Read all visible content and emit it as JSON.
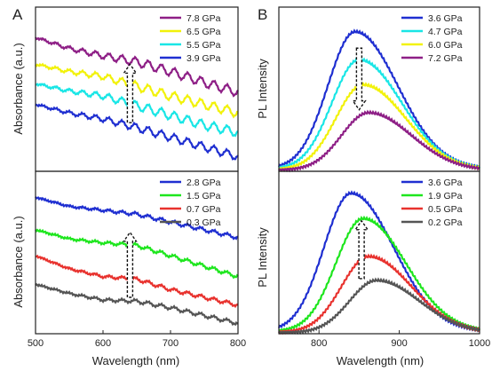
{
  "colors": {
    "purple": "#8e1f86",
    "yellow": "#f2f20a",
    "cyan": "#19e6e6",
    "blue": "#1f2fd1",
    "green": "#1ee61e",
    "red": "#e8322e",
    "gray": "#555555",
    "axis": "#222222"
  },
  "panels": {
    "A": {
      "label": "A"
    },
    "B": {
      "label": "B"
    }
  },
  "chart_data": [
    {
      "id": "A-top",
      "type": "line",
      "ylabel": "Absorbance (a.u.)",
      "xlabel": "",
      "xlim": [
        500,
        800
      ],
      "x": [
        500,
        550,
        600,
        650,
        700,
        750,
        800
      ],
      "legend_position": "top-right",
      "series": [
        {
          "name": "7.8 GPa",
          "color": "purple",
          "values": [
            1.0,
            0.91,
            0.85,
            0.8,
            0.72,
            0.63,
            0.55
          ],
          "ripple": 0.035
        },
        {
          "name": "6.5 GPa",
          "color": "yellow",
          "values": [
            0.78,
            0.72,
            0.68,
            0.6,
            0.52,
            0.45,
            0.38
          ],
          "ripple": 0.035
        },
        {
          "name": "5.5 GPa",
          "color": "cyan",
          "values": [
            0.62,
            0.56,
            0.52,
            0.44,
            0.36,
            0.28,
            0.22
          ],
          "ripple": 0.035
        },
        {
          "name": "3.9 GPa",
          "color": "blue",
          "values": [
            0.45,
            0.38,
            0.33,
            0.26,
            0.18,
            0.1,
            0.02
          ],
          "ripple": 0.03
        }
      ],
      "arrow": {
        "x": 640,
        "from": 0.3,
        "to": 0.78,
        "dir": "up"
      }
    },
    {
      "id": "A-bottom",
      "type": "line",
      "ylabel": "Absorbance (a.u.)",
      "xlabel": "Wavelength (nm)",
      "xlim": [
        500,
        800
      ],
      "xticks": [
        500,
        600,
        700,
        800
      ],
      "x": [
        500,
        550,
        600,
        650,
        700,
        750,
        800
      ],
      "legend_position": "top-right",
      "series": [
        {
          "name": "2.8 GPa",
          "color": "blue",
          "values": [
            0.85,
            0.78,
            0.75,
            0.72,
            0.66,
            0.6,
            0.54
          ],
          "ripple": 0.012
        },
        {
          "name": "1.5 GPa",
          "color": "green",
          "values": [
            0.6,
            0.53,
            0.5,
            0.48,
            0.4,
            0.32,
            0.24
          ],
          "ripple": 0.012
        },
        {
          "name": "0.7 GPa",
          "color": "red",
          "values": [
            0.4,
            0.3,
            0.24,
            0.22,
            0.14,
            0.08,
            0.02
          ],
          "ripple": 0.012
        },
        {
          "name": "0.3 GPa",
          "color": "gray",
          "values": [
            0.18,
            0.11,
            0.06,
            0.05,
            0.0,
            -0.06,
            -0.12
          ],
          "ripple": 0.012
        }
      ],
      "arrow": {
        "x": 640,
        "from": 0.08,
        "to": 0.58,
        "dir": "up"
      }
    },
    {
      "id": "B-top",
      "type": "line",
      "ylabel": "PL Intensity",
      "xlabel": "",
      "xlim": [
        750,
        1000
      ],
      "legend_position": "top-right",
      "series": [
        {
          "name": "3.6 GPa",
          "color": "blue",
          "peak": 845,
          "amp": 1.0
        },
        {
          "name": "4.7 GPa",
          "color": "cyan",
          "peak": 850,
          "amp": 0.8
        },
        {
          "name": "6.0 GPa",
          "color": "yellow",
          "peak": 855,
          "amp": 0.62
        },
        {
          "name": "7.2 GPa",
          "color": "purple",
          "peak": 862,
          "amp": 0.42
        }
      ],
      "arrow": {
        "x": 850,
        "from": 0.9,
        "to": 0.45,
        "dir": "down"
      }
    },
    {
      "id": "B-bottom",
      "type": "line",
      "ylabel": "PL Intensity",
      "xlabel": "Wavelength (nm)",
      "xlim": [
        750,
        1000
      ],
      "xticks": [
        800,
        900,
        1000
      ],
      "legend_position": "top-right",
      "series": [
        {
          "name": "3.6 GPa",
          "color": "blue",
          "peak": 840,
          "amp": 1.0
        },
        {
          "name": "1.9 GPa",
          "color": "green",
          "peak": 855,
          "amp": 0.82
        },
        {
          "name": "0.5 GPa",
          "color": "red",
          "peak": 862,
          "amp": 0.55
        },
        {
          "name": "0.2 GPa",
          "color": "gray",
          "peak": 872,
          "amp": 0.38
        }
      ],
      "arrow": {
        "x": 853,
        "from": 0.4,
        "to": 0.82,
        "dir": "up"
      }
    }
  ]
}
